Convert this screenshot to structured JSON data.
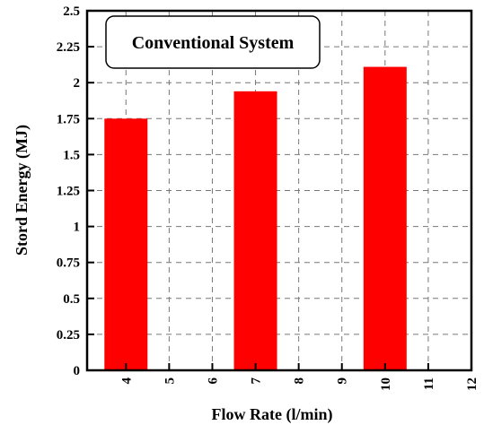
{
  "chart_data": {
    "type": "bar",
    "title": "",
    "legend": {
      "label": "Conventional System",
      "placement": "top-left"
    },
    "xlabel": "Flow Rate (l/min)",
    "ylabel": "Stord Energy (MJ)",
    "x_ticks": [
      "4",
      "5",
      "6",
      "7",
      "8",
      "9",
      "10",
      "11",
      "12"
    ],
    "y_ticks": [
      "0",
      "0.25",
      "0.5",
      "0.75",
      "1",
      "1.25",
      "1.5",
      "1.75",
      "2",
      "2.25",
      "2.5"
    ],
    "xlim": [
      3.1,
      12
    ],
    "ylim": [
      0,
      2.5
    ],
    "grid": true,
    "bar_color": "#ff0000",
    "bars": [
      {
        "x": 4,
        "value": 1.75
      },
      {
        "x": 7,
        "value": 1.94
      },
      {
        "x": 10,
        "value": 2.11
      }
    ]
  }
}
